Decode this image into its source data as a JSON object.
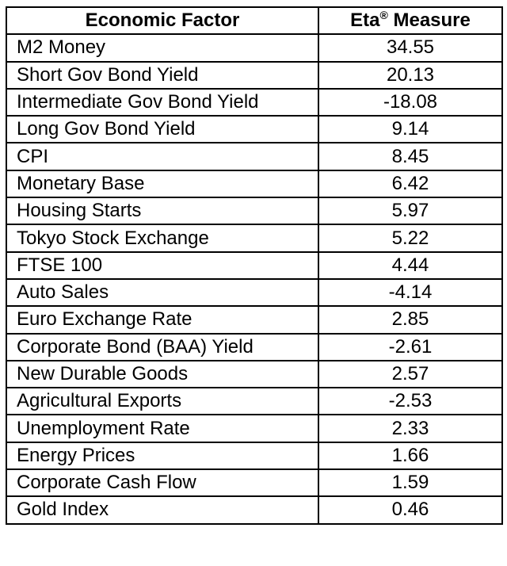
{
  "table": {
    "headers": {
      "factor": "Economic Factor",
      "measure_main": "Eta",
      "measure_mark": "®",
      "measure_tail": " Measure"
    },
    "rows": [
      {
        "factor": "M2 Money",
        "measure": "34.55"
      },
      {
        "factor": "Short Gov Bond Yield",
        "measure": "20.13"
      },
      {
        "factor": "Intermediate Gov Bond Yield",
        "measure": "-18.08"
      },
      {
        "factor": "Long Gov Bond Yield",
        "measure": "9.14"
      },
      {
        "factor": "CPI",
        "measure": "8.45"
      },
      {
        "factor": "Monetary Base",
        "measure": "6.42"
      },
      {
        "factor": "Housing Starts",
        "measure": "5.97"
      },
      {
        "factor": "Tokyo Stock Exchange",
        "measure": "5.22"
      },
      {
        "factor": "FTSE 100",
        "measure": "4.44"
      },
      {
        "factor": "Auto Sales",
        "measure": "-4.14"
      },
      {
        "factor": "Euro Exchange Rate",
        "measure": "2.85"
      },
      {
        "factor": "Corporate Bond (BAA) Yield",
        "measure": "-2.61"
      },
      {
        "factor": "New Durable Goods",
        "measure": "2.57"
      },
      {
        "factor": "Agricultural Exports",
        "measure": "-2.53"
      },
      {
        "factor": "Unemployment Rate",
        "measure": "2.33"
      },
      {
        "factor": "Energy Prices",
        "measure": "1.66"
      },
      {
        "factor": "Corporate Cash Flow",
        "measure": "1.59"
      },
      {
        "factor": "Gold Index",
        "measure": "0.46"
      }
    ]
  }
}
